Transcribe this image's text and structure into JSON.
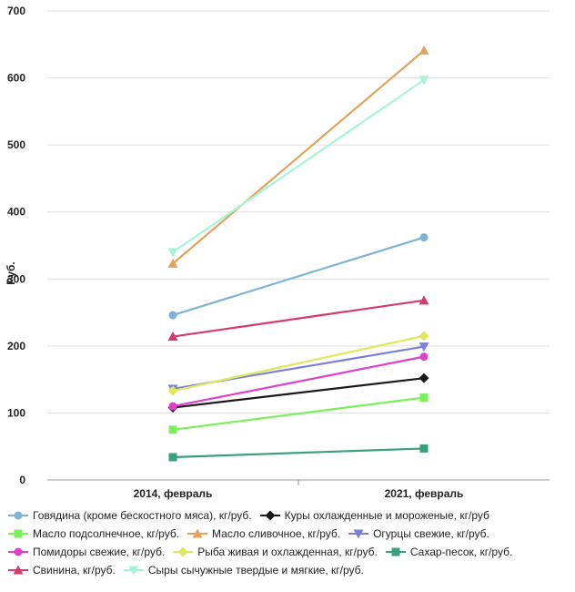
{
  "chart_data": {
    "type": "line",
    "categories": [
      "2014, февраль",
      "2021, февраль"
    ],
    "ylabel": "Руб.",
    "ylim": [
      0,
      700
    ],
    "yticks": [
      0,
      100,
      200,
      300,
      400,
      500,
      600,
      700
    ],
    "grid": true,
    "legend_position": "bottom",
    "series": [
      {
        "name": "Говядина (кроме бескостного мяса), кг/руб.",
        "values": [
          246,
          362
        ],
        "color": "#7fb3d5",
        "marker": "circle"
      },
      {
        "name": "Куры охлажденные и мороженые, кг/руб",
        "values": [
          108,
          152
        ],
        "color": "#1a1a1a",
        "marker": "diamond"
      },
      {
        "name": "Масло подсолнечное, кг/руб.",
        "values": [
          75,
          123
        ],
        "color": "#7cf05a",
        "marker": "square"
      },
      {
        "name": "Масло сливочное, кг/руб.",
        "values": [
          323,
          641
        ],
        "color": "#e0a35c",
        "marker": "triangle-up"
      },
      {
        "name": "Огурцы свежие, кг/руб.",
        "values": [
          136,
          199
        ],
        "color": "#7b7fd6",
        "marker": "triangle-down"
      },
      {
        "name": "Помидоры свежие, кг/руб.",
        "values": [
          110,
          184
        ],
        "color": "#e040c8",
        "marker": "circle"
      },
      {
        "name": "Рыба живая и охлажденная, кг/руб.",
        "values": [
          133,
          215
        ],
        "color": "#dfe85a",
        "marker": "diamond"
      },
      {
        "name": "Сахар-песок, кг/руб.",
        "values": [
          34,
          47
        ],
        "color": "#3aa07a",
        "marker": "square"
      },
      {
        "name": "Свинина, кг/руб.",
        "values": [
          214,
          268
        ],
        "color": "#d63a6a",
        "marker": "triangle-up"
      },
      {
        "name": "Сыры сычужные твердые и мягкие, кг/руб.",
        "values": [
          340,
          597
        ],
        "color": "#a6f5d3",
        "marker": "triangle-down"
      }
    ]
  }
}
